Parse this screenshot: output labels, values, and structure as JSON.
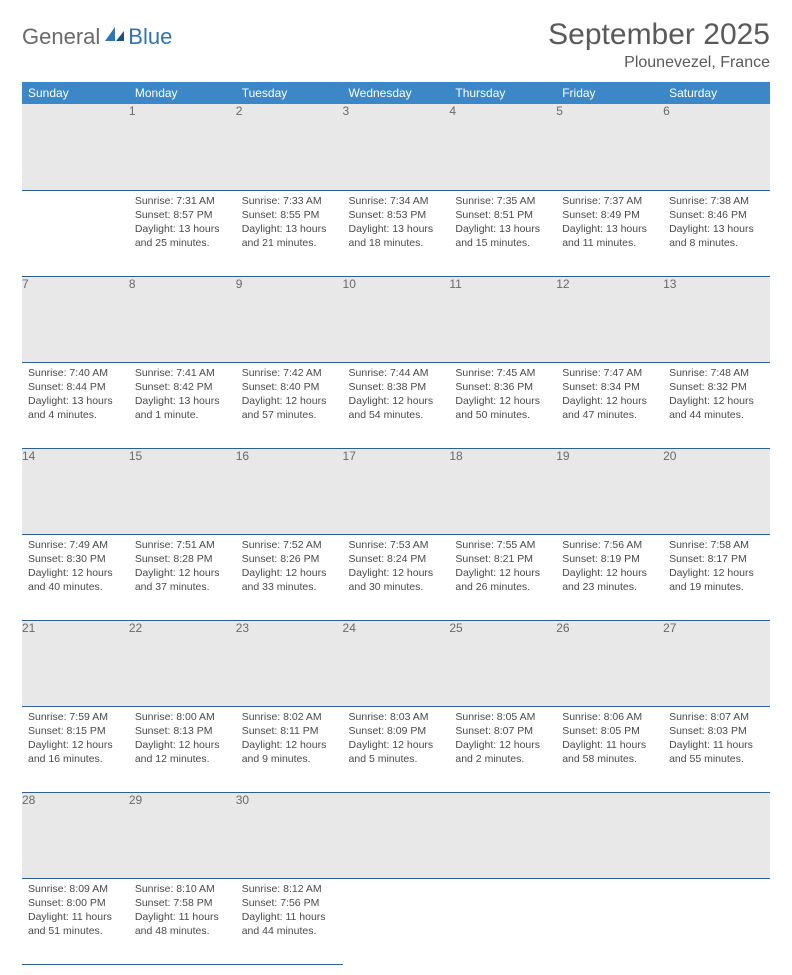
{
  "logo": {
    "part1": "General",
    "part2": "Blue"
  },
  "title": "September 2025",
  "location": "Plounevezel, France",
  "colors": {
    "header_bg": "#3b87c8",
    "header_text": "#ffffff",
    "daynum_bg": "#e8e8e8",
    "daynum_text": "#6a6a6a",
    "row_border": "#2f5f93",
    "body_text": "#4a4a4a",
    "title_text": "#5a5a5a",
    "logo_gray": "#6a6a6a",
    "logo_blue": "#2f74b5"
  },
  "weekdays": [
    "Sunday",
    "Monday",
    "Tuesday",
    "Wednesday",
    "Thursday",
    "Friday",
    "Saturday"
  ],
  "first_weekday_index": 1,
  "days": [
    {
      "n": 1,
      "sunrise": "7:31 AM",
      "sunset": "8:57 PM",
      "daylight": "13 hours and 25 minutes."
    },
    {
      "n": 2,
      "sunrise": "7:33 AM",
      "sunset": "8:55 PM",
      "daylight": "13 hours and 21 minutes."
    },
    {
      "n": 3,
      "sunrise": "7:34 AM",
      "sunset": "8:53 PM",
      "daylight": "13 hours and 18 minutes."
    },
    {
      "n": 4,
      "sunrise": "7:35 AM",
      "sunset": "8:51 PM",
      "daylight": "13 hours and 15 minutes."
    },
    {
      "n": 5,
      "sunrise": "7:37 AM",
      "sunset": "8:49 PM",
      "daylight": "13 hours and 11 minutes."
    },
    {
      "n": 6,
      "sunrise": "7:38 AM",
      "sunset": "8:46 PM",
      "daylight": "13 hours and 8 minutes."
    },
    {
      "n": 7,
      "sunrise": "7:40 AM",
      "sunset": "8:44 PM",
      "daylight": "13 hours and 4 minutes."
    },
    {
      "n": 8,
      "sunrise": "7:41 AM",
      "sunset": "8:42 PM",
      "daylight": "13 hours and 1 minute."
    },
    {
      "n": 9,
      "sunrise": "7:42 AM",
      "sunset": "8:40 PM",
      "daylight": "12 hours and 57 minutes."
    },
    {
      "n": 10,
      "sunrise": "7:44 AM",
      "sunset": "8:38 PM",
      "daylight": "12 hours and 54 minutes."
    },
    {
      "n": 11,
      "sunrise": "7:45 AM",
      "sunset": "8:36 PM",
      "daylight": "12 hours and 50 minutes."
    },
    {
      "n": 12,
      "sunrise": "7:47 AM",
      "sunset": "8:34 PM",
      "daylight": "12 hours and 47 minutes."
    },
    {
      "n": 13,
      "sunrise": "7:48 AM",
      "sunset": "8:32 PM",
      "daylight": "12 hours and 44 minutes."
    },
    {
      "n": 14,
      "sunrise": "7:49 AM",
      "sunset": "8:30 PM",
      "daylight": "12 hours and 40 minutes."
    },
    {
      "n": 15,
      "sunrise": "7:51 AM",
      "sunset": "8:28 PM",
      "daylight": "12 hours and 37 minutes."
    },
    {
      "n": 16,
      "sunrise": "7:52 AM",
      "sunset": "8:26 PM",
      "daylight": "12 hours and 33 minutes."
    },
    {
      "n": 17,
      "sunrise": "7:53 AM",
      "sunset": "8:24 PM",
      "daylight": "12 hours and 30 minutes."
    },
    {
      "n": 18,
      "sunrise": "7:55 AM",
      "sunset": "8:21 PM",
      "daylight": "12 hours and 26 minutes."
    },
    {
      "n": 19,
      "sunrise": "7:56 AM",
      "sunset": "8:19 PM",
      "daylight": "12 hours and 23 minutes."
    },
    {
      "n": 20,
      "sunrise": "7:58 AM",
      "sunset": "8:17 PM",
      "daylight": "12 hours and 19 minutes."
    },
    {
      "n": 21,
      "sunrise": "7:59 AM",
      "sunset": "8:15 PM",
      "daylight": "12 hours and 16 minutes."
    },
    {
      "n": 22,
      "sunrise": "8:00 AM",
      "sunset": "8:13 PM",
      "daylight": "12 hours and 12 minutes."
    },
    {
      "n": 23,
      "sunrise": "8:02 AM",
      "sunset": "8:11 PM",
      "daylight": "12 hours and 9 minutes."
    },
    {
      "n": 24,
      "sunrise": "8:03 AM",
      "sunset": "8:09 PM",
      "daylight": "12 hours and 5 minutes."
    },
    {
      "n": 25,
      "sunrise": "8:05 AM",
      "sunset": "8:07 PM",
      "daylight": "12 hours and 2 minutes."
    },
    {
      "n": 26,
      "sunrise": "8:06 AM",
      "sunset": "8:05 PM",
      "daylight": "11 hours and 58 minutes."
    },
    {
      "n": 27,
      "sunrise": "8:07 AM",
      "sunset": "8:03 PM",
      "daylight": "11 hours and 55 minutes."
    },
    {
      "n": 28,
      "sunrise": "8:09 AM",
      "sunset": "8:00 PM",
      "daylight": "11 hours and 51 minutes."
    },
    {
      "n": 29,
      "sunrise": "8:10 AM",
      "sunset": "7:58 PM",
      "daylight": "11 hours and 48 minutes."
    },
    {
      "n": 30,
      "sunrise": "8:12 AM",
      "sunset": "7:56 PM",
      "daylight": "11 hours and 44 minutes."
    }
  ],
  "labels": {
    "sunrise": "Sunrise:",
    "sunset": "Sunset:",
    "daylight": "Daylight:"
  }
}
